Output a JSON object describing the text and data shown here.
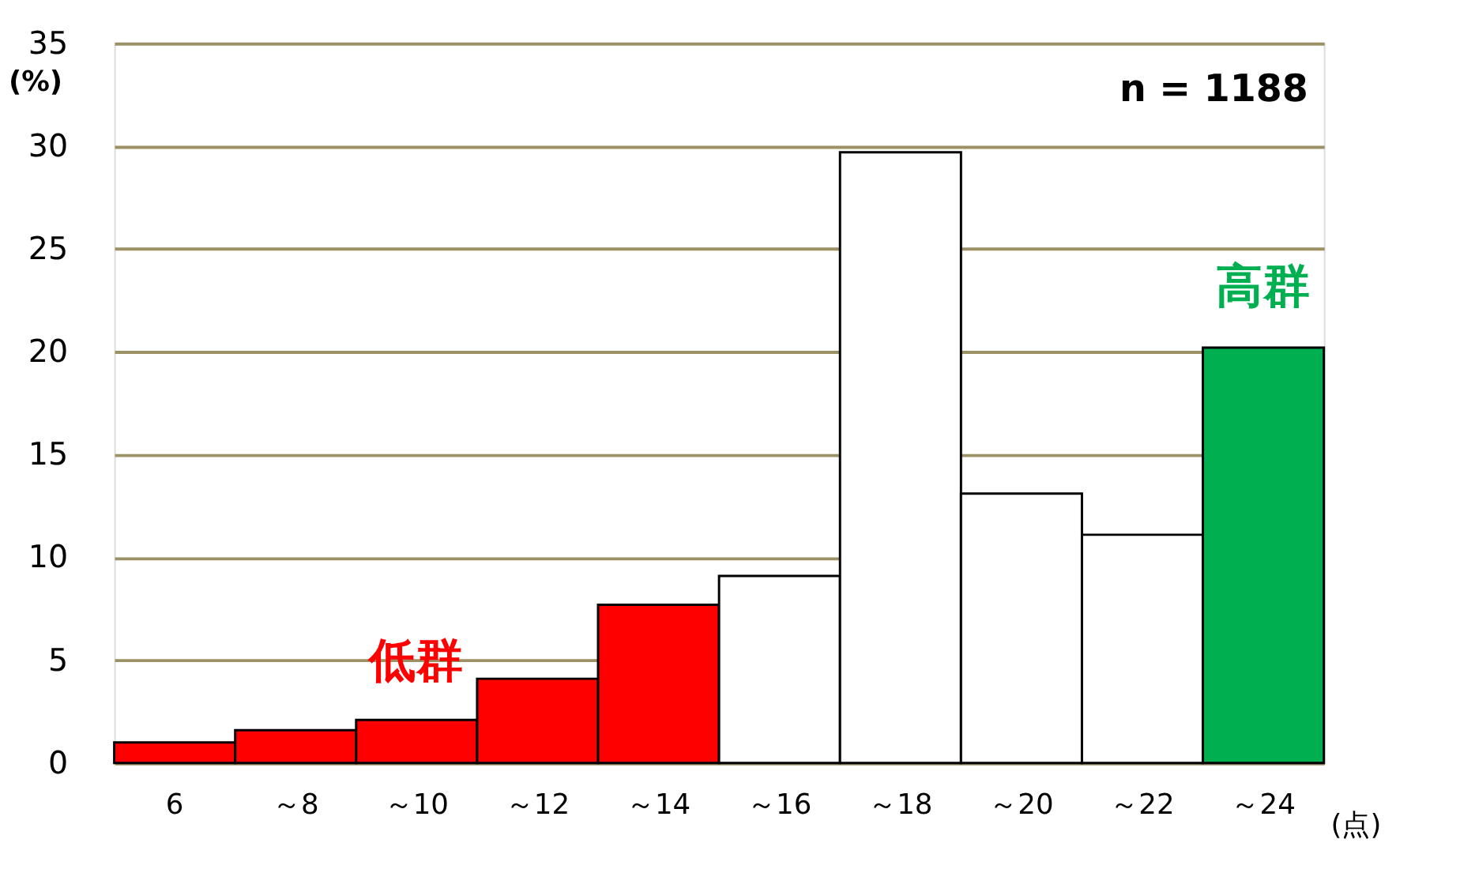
{
  "chart_data": {
    "type": "bar",
    "categories": [
      "6",
      "～8",
      "～10",
      "～12",
      "～14",
      "～16",
      "～18",
      "～20",
      "～22",
      "～24"
    ],
    "values": [
      1.0,
      1.6,
      2.1,
      4.1,
      7.7,
      9.1,
      29.7,
      13.1,
      11.1,
      20.2
    ],
    "colors": [
      "#ff0000",
      "#ff0000",
      "#ff0000",
      "#ff0000",
      "#ff0000",
      "#ffffff",
      "#ffffff",
      "#ffffff",
      "#ffffff",
      "#00b050"
    ],
    "ylabel": "(%)",
    "xlabel": "(点)",
    "ylim": [
      0,
      35
    ],
    "yticks": [
      0,
      5,
      10,
      15,
      20,
      25,
      30,
      35
    ],
    "grid": "y",
    "annotations": [
      "n = 1188",
      "低群",
      "高群"
    ]
  }
}
